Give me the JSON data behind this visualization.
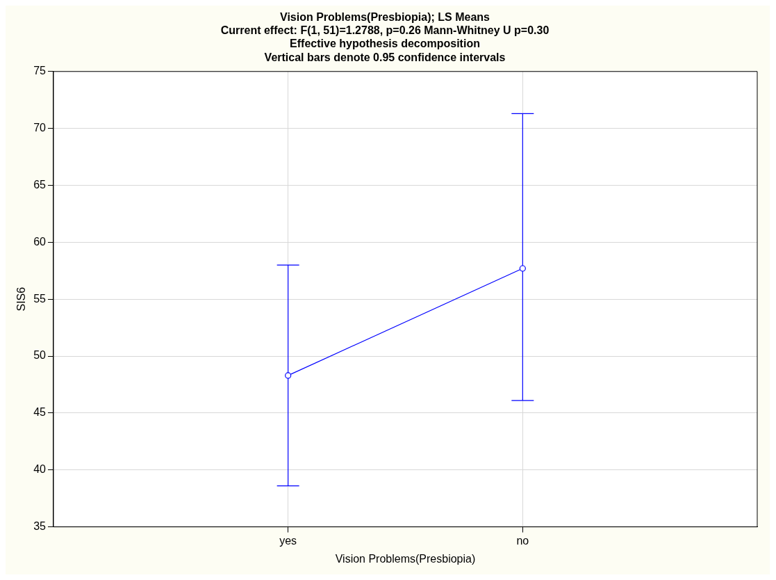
{
  "chart_data": {
    "type": "line",
    "title": "Vision Problems(Presbiopia); LS Means",
    "subtitle": "Current effect: F(1, 51)=1.2788, p=0.26 Mann-Whitney U p=0.30",
    "annotations": [
      "Effective hypothesis decomposition",
      "Vertical bars denote 0.95 confidence intervals"
    ],
    "xlabel": "Vision Problems(Presbiopia)",
    "ylabel": "SIS6",
    "categories": [
      "yes",
      "no"
    ],
    "series": [
      {
        "color": "#0000ff",
        "values": [
          48.3,
          57.7
        ],
        "errors": [
          [
            38.6,
            58.0
          ],
          [
            46.1,
            71.3
          ]
        ]
      }
    ],
    "ylim": [
      35,
      75
    ],
    "yticks": [
      35,
      40,
      45,
      50,
      55,
      60,
      65,
      70,
      75
    ],
    "grid": true,
    "legend": false,
    "marker": "circle",
    "line_style": "solid"
  }
}
